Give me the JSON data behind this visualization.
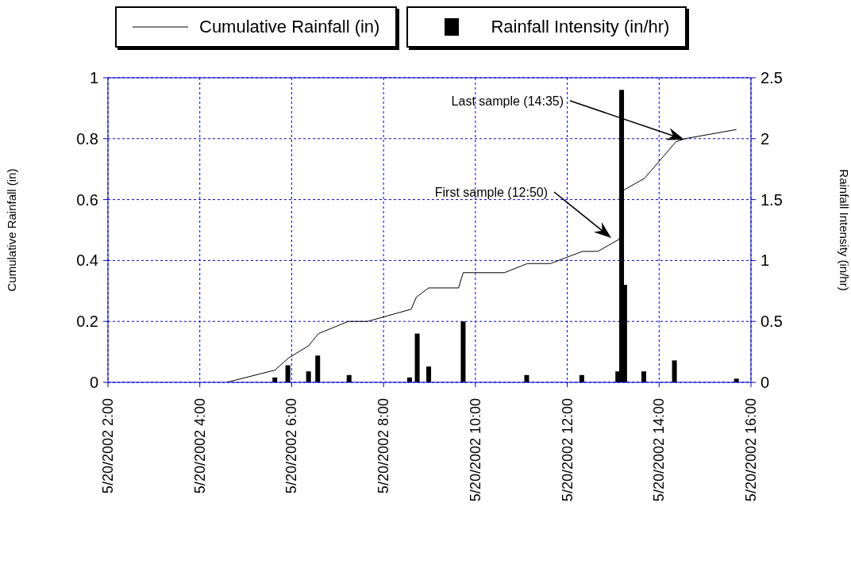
{
  "chart_data": {
    "type": "line",
    "legend": "top",
    "grid": true,
    "xlim": [
      "2002-05-20T02:00",
      "2002-05-20T16:00"
    ],
    "xticks": [
      {
        "value": "2002-05-20T02:00",
        "label": "5/20/2002 2:00"
      },
      {
        "value": "2002-05-20T04:00",
        "label": "5/20/2002 4:00"
      },
      {
        "value": "2002-05-20T06:00",
        "label": "5/20/2002 6:00"
      },
      {
        "value": "2002-05-20T08:00",
        "label": "5/20/2002 8:00"
      },
      {
        "value": "2002-05-20T10:00",
        "label": "5/20/2002 10:00"
      },
      {
        "value": "2002-05-20T12:00",
        "label": "5/20/2002 12:00"
      },
      {
        "value": "2002-05-20T14:00",
        "label": "5/20/2002 14:00"
      },
      {
        "value": "2002-05-20T16:00",
        "label": "5/20/2002 16:00"
      }
    ],
    "ylim": [
      0,
      1
    ],
    "yticks": [
      0,
      0.2,
      0.4,
      0.6,
      0.8,
      1
    ],
    "y2lim": [
      0,
      2.5
    ],
    "y2ticks": [
      0,
      0.5,
      1,
      1.5,
      2,
      2.5
    ],
    "ylabel": "Cumulative Rainfall (in)",
    "y2label": "Rainfall Intensity (in/hr)",
    "series": [
      {
        "name": "Cumulative Rainfall (in)",
        "color": "#000000",
        "x": [
          "2002-05-20T04:35",
          "2002-05-20T05:38",
          "2002-05-20T05:56",
          "2002-05-20T06:22",
          "2002-05-20T06:35",
          "2002-05-20T07:14",
          "2002-05-20T07:39",
          "2002-05-20T08:36",
          "2002-05-20T08:43",
          "2002-05-20T08:59",
          "2002-05-20T09:38",
          "2002-05-20T09:44",
          "2002-05-20T10:38",
          "2002-05-20T11:08",
          "2002-05-20T11:38",
          "2002-05-20T12:20",
          "2002-05-20T12:40",
          "2002-05-20T13:08",
          "2002-05-20T13:13",
          "2002-05-20T13:41",
          "2002-05-20T14:22",
          "2002-05-20T14:34",
          "2002-05-20T15:41"
        ],
        "values": [
          0,
          0.04,
          0.08,
          0.12,
          0.16,
          0.2,
          0.2,
          0.24,
          0.28,
          0.31,
          0.31,
          0.36,
          0.36,
          0.39,
          0.39,
          0.43,
          0.43,
          0.47,
          0.63,
          0.67,
          0.79,
          0.8,
          0.83
        ]
      },
      {
        "name": "Rainfall Intensity (in/hr)",
        "type": "bar",
        "axis": "y2",
        "color": "#000000",
        "x": [
          "2002-05-20T05:38",
          "2002-05-20T05:55",
          "2002-05-20T06:22",
          "2002-05-20T06:34",
          "2002-05-20T07:15",
          "2002-05-20T08:34",
          "2002-05-20T08:44",
          "2002-05-20T08:59",
          "2002-05-20T09:44",
          "2002-05-20T11:07",
          "2002-05-20T12:19",
          "2002-05-20T13:06",
          "2002-05-20T13:11",
          "2002-05-20T13:15",
          "2002-05-20T13:40",
          "2002-05-20T14:20",
          "2002-05-20T15:41"
        ],
        "values": [
          0.04,
          0.14,
          0.09,
          0.22,
          0.06,
          0.04,
          0.4,
          0.13,
          0.5,
          0.06,
          0.06,
          0.09,
          2.4,
          0.8,
          0.09,
          0.18,
          0.03
        ]
      }
    ],
    "annotations": [
      "Last sample (14:35)",
      "First sample (12:50)"
    ]
  }
}
